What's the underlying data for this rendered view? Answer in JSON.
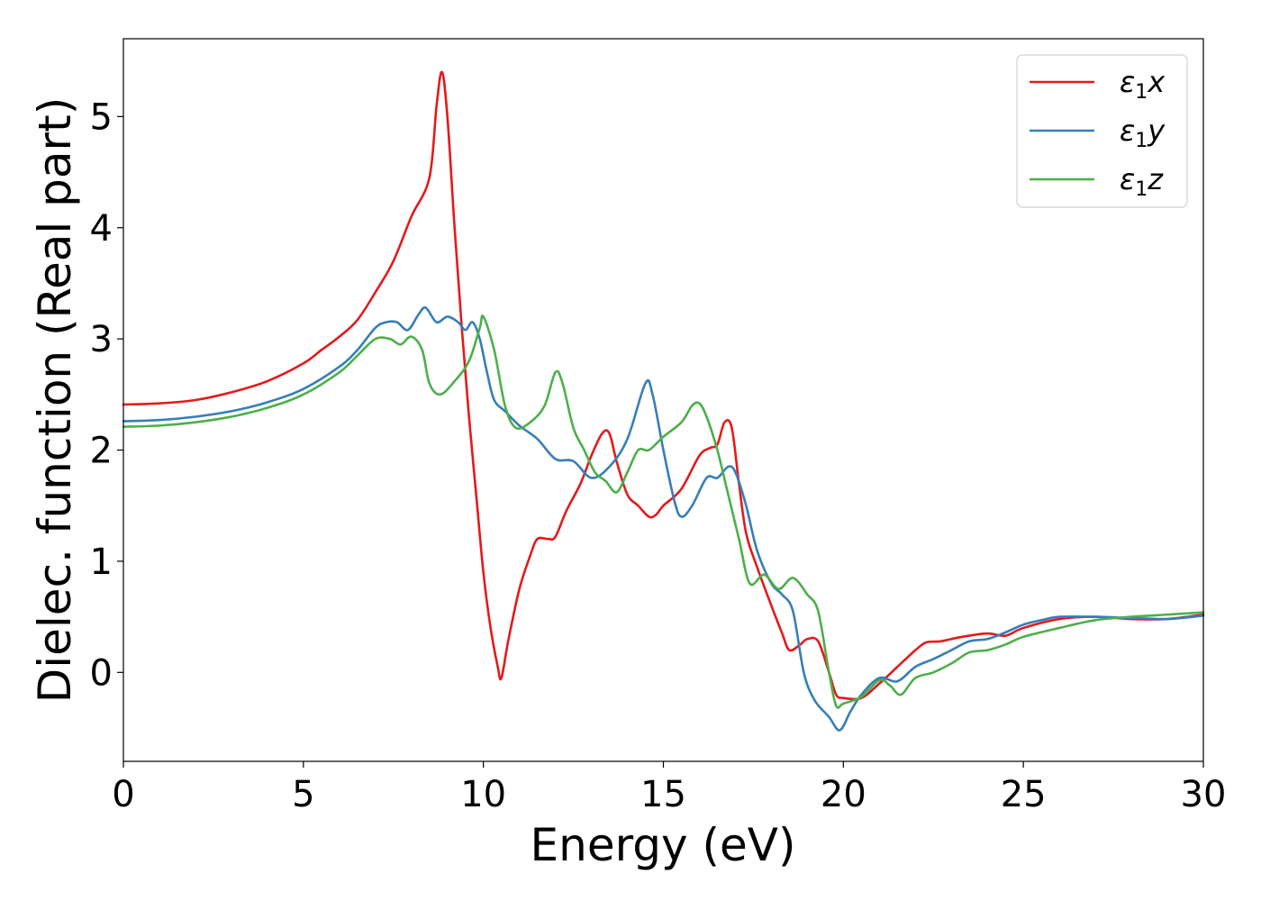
{
  "chart_data": {
    "type": "line",
    "xlabel": "Energy (eV)",
    "ylabel": "Dielec. function (Real part)",
    "xlim": [
      0,
      30
    ],
    "ylim": [
      -0.8,
      5.7
    ],
    "xticks": [
      0,
      5,
      10,
      15,
      20,
      25,
      30
    ],
    "yticks": [
      0,
      1,
      2,
      3,
      4,
      5
    ],
    "grid": false,
    "legend_position": "top-right",
    "series": [
      {
        "name": "ε1x",
        "label_main": "ε",
        "label_sub": "1",
        "label_var": "x",
        "color": "#e41a1c",
        "points": [
          [
            0,
            2.41
          ],
          [
            1,
            2.42
          ],
          [
            2,
            2.45
          ],
          [
            3,
            2.52
          ],
          [
            4,
            2.62
          ],
          [
            5,
            2.78
          ],
          [
            5.5,
            2.9
          ],
          [
            6,
            3.02
          ],
          [
            6.5,
            3.17
          ],
          [
            7,
            3.42
          ],
          [
            7.5,
            3.7
          ],
          [
            8,
            4.1
          ],
          [
            8.5,
            4.45
          ],
          [
            8.7,
            5.1
          ],
          [
            8.85,
            5.4
          ],
          [
            9,
            5.0
          ],
          [
            9.2,
            4.0
          ],
          [
            9.4,
            3.1
          ],
          [
            9.6,
            2.3
          ],
          [
            9.8,
            1.6
          ],
          [
            10,
            0.9
          ],
          [
            10.2,
            0.4
          ],
          [
            10.4,
            0.05
          ],
          [
            10.5,
            -0.05
          ],
          [
            10.7,
            0.3
          ],
          [
            11,
            0.75
          ],
          [
            11.3,
            1.05
          ],
          [
            11.5,
            1.2
          ],
          [
            11.8,
            1.2
          ],
          [
            12,
            1.22
          ],
          [
            12.3,
            1.45
          ],
          [
            12.7,
            1.7
          ],
          [
            13,
            1.95
          ],
          [
            13.3,
            2.15
          ],
          [
            13.5,
            2.15
          ],
          [
            13.7,
            1.9
          ],
          [
            14,
            1.6
          ],
          [
            14.3,
            1.5
          ],
          [
            14.6,
            1.4
          ],
          [
            14.8,
            1.42
          ],
          [
            15,
            1.5
          ],
          [
            15.5,
            1.65
          ],
          [
            16,
            1.95
          ],
          [
            16.3,
            2.02
          ],
          [
            16.5,
            2.05
          ],
          [
            16.7,
            2.25
          ],
          [
            16.9,
            2.2
          ],
          [
            17.1,
            1.7
          ],
          [
            17.3,
            1.25
          ],
          [
            17.6,
            0.95
          ],
          [
            18,
            0.6
          ],
          [
            18.3,
            0.35
          ],
          [
            18.5,
            0.2
          ],
          [
            18.8,
            0.25
          ],
          [
            19,
            0.3
          ],
          [
            19.3,
            0.28
          ],
          [
            19.6,
            0.0
          ],
          [
            19.8,
            -0.2
          ],
          [
            20,
            -0.23
          ],
          [
            20.5,
            -0.23
          ],
          [
            21,
            -0.1
          ],
          [
            21.5,
            0.05
          ],
          [
            22,
            0.2
          ],
          [
            22.3,
            0.27
          ],
          [
            22.7,
            0.28
          ],
          [
            23.3,
            0.32
          ],
          [
            24,
            0.35
          ],
          [
            24.5,
            0.33
          ],
          [
            25,
            0.4
          ],
          [
            26,
            0.48
          ],
          [
            27,
            0.5
          ],
          [
            28,
            0.48
          ],
          [
            29,
            0.48
          ],
          [
            30,
            0.52
          ]
        ]
      },
      {
        "name": "ε1y",
        "label_main": "ε",
        "label_sub": "1",
        "label_var": "y",
        "color": "#377eb8",
        "points": [
          [
            0,
            2.26
          ],
          [
            1,
            2.27
          ],
          [
            2,
            2.3
          ],
          [
            3,
            2.35
          ],
          [
            4,
            2.43
          ],
          [
            5,
            2.55
          ],
          [
            6,
            2.75
          ],
          [
            6.5,
            2.9
          ],
          [
            7,
            3.1
          ],
          [
            7.3,
            3.15
          ],
          [
            7.6,
            3.15
          ],
          [
            7.9,
            3.08
          ],
          [
            8.2,
            3.22
          ],
          [
            8.4,
            3.28
          ],
          [
            8.7,
            3.15
          ],
          [
            9,
            3.2
          ],
          [
            9.3,
            3.15
          ],
          [
            9.5,
            3.08
          ],
          [
            9.7,
            3.15
          ],
          [
            9.9,
            3.0
          ],
          [
            10.1,
            2.7
          ],
          [
            10.3,
            2.45
          ],
          [
            10.6,
            2.35
          ],
          [
            11,
            2.22
          ],
          [
            11.5,
            2.1
          ],
          [
            12,
            1.92
          ],
          [
            12.5,
            1.9
          ],
          [
            13,
            1.75
          ],
          [
            13.5,
            1.85
          ],
          [
            14,
            2.1
          ],
          [
            14.5,
            2.6
          ],
          [
            14.7,
            2.5
          ],
          [
            15,
            2.0
          ],
          [
            15.3,
            1.55
          ],
          [
            15.5,
            1.4
          ],
          [
            15.8,
            1.5
          ],
          [
            16.2,
            1.75
          ],
          [
            16.5,
            1.75
          ],
          [
            16.8,
            1.85
          ],
          [
            17,
            1.8
          ],
          [
            17.3,
            1.5
          ],
          [
            17.6,
            1.1
          ],
          [
            18,
            0.8
          ],
          [
            18.3,
            0.7
          ],
          [
            18.6,
            0.55
          ],
          [
            18.9,
            0.0
          ],
          [
            19.2,
            -0.25
          ],
          [
            19.6,
            -0.4
          ],
          [
            19.9,
            -0.52
          ],
          [
            20.2,
            -0.35
          ],
          [
            20.5,
            -0.2
          ],
          [
            21,
            -0.05
          ],
          [
            21.5,
            -0.08
          ],
          [
            22,
            0.05
          ],
          [
            22.5,
            0.12
          ],
          [
            23,
            0.2
          ],
          [
            23.5,
            0.28
          ],
          [
            24,
            0.3
          ],
          [
            24.5,
            0.36
          ],
          [
            25,
            0.43
          ],
          [
            25.5,
            0.47
          ],
          [
            26,
            0.5
          ],
          [
            27,
            0.5
          ],
          [
            28,
            0.49
          ],
          [
            29,
            0.48
          ],
          [
            30,
            0.51
          ]
        ]
      },
      {
        "name": "ε1z",
        "label_main": "ε",
        "label_sub": "1",
        "label_var": "z",
        "color": "#4daf4a",
        "points": [
          [
            0,
            2.21
          ],
          [
            1,
            2.22
          ],
          [
            2,
            2.25
          ],
          [
            3,
            2.3
          ],
          [
            4,
            2.38
          ],
          [
            5,
            2.5
          ],
          [
            6,
            2.7
          ],
          [
            6.5,
            2.85
          ],
          [
            7,
            3.0
          ],
          [
            7.4,
            3.0
          ],
          [
            7.7,
            2.95
          ],
          [
            8,
            3.02
          ],
          [
            8.3,
            2.9
          ],
          [
            8.5,
            2.6
          ],
          [
            8.8,
            2.5
          ],
          [
            9.2,
            2.62
          ],
          [
            9.6,
            2.8
          ],
          [
            9.9,
            3.1
          ],
          [
            10,
            3.2
          ],
          [
            10.3,
            2.9
          ],
          [
            10.6,
            2.4
          ],
          [
            10.9,
            2.2
          ],
          [
            11.3,
            2.25
          ],
          [
            11.7,
            2.4
          ],
          [
            12,
            2.7
          ],
          [
            12.2,
            2.6
          ],
          [
            12.5,
            2.2
          ],
          [
            12.8,
            2.0
          ],
          [
            13.1,
            1.8
          ],
          [
            13.4,
            1.72
          ],
          [
            13.7,
            1.62
          ],
          [
            14,
            1.8
          ],
          [
            14.3,
            2.0
          ],
          [
            14.6,
            2.0
          ],
          [
            15,
            2.12
          ],
          [
            15.5,
            2.25
          ],
          [
            15.8,
            2.4
          ],
          [
            16,
            2.42
          ],
          [
            16.2,
            2.3
          ],
          [
            16.5,
            2.0
          ],
          [
            16.8,
            1.6
          ],
          [
            17.1,
            1.2
          ],
          [
            17.4,
            0.8
          ],
          [
            17.8,
            0.88
          ],
          [
            18.2,
            0.75
          ],
          [
            18.6,
            0.85
          ],
          [
            19,
            0.7
          ],
          [
            19.3,
            0.55
          ],
          [
            19.6,
            0.0
          ],
          [
            19.8,
            -0.3
          ],
          [
            20,
            -0.28
          ],
          [
            20.5,
            -0.22
          ],
          [
            21,
            -0.07
          ],
          [
            21.3,
            -0.12
          ],
          [
            21.6,
            -0.2
          ],
          [
            22,
            -0.05
          ],
          [
            22.5,
            0.0
          ],
          [
            23,
            0.08
          ],
          [
            23.5,
            0.18
          ],
          [
            24,
            0.2
          ],
          [
            24.5,
            0.25
          ],
          [
            25,
            0.32
          ],
          [
            26,
            0.4
          ],
          [
            27,
            0.47
          ],
          [
            28,
            0.5
          ],
          [
            29,
            0.52
          ],
          [
            30,
            0.54
          ]
        ]
      }
    ]
  }
}
